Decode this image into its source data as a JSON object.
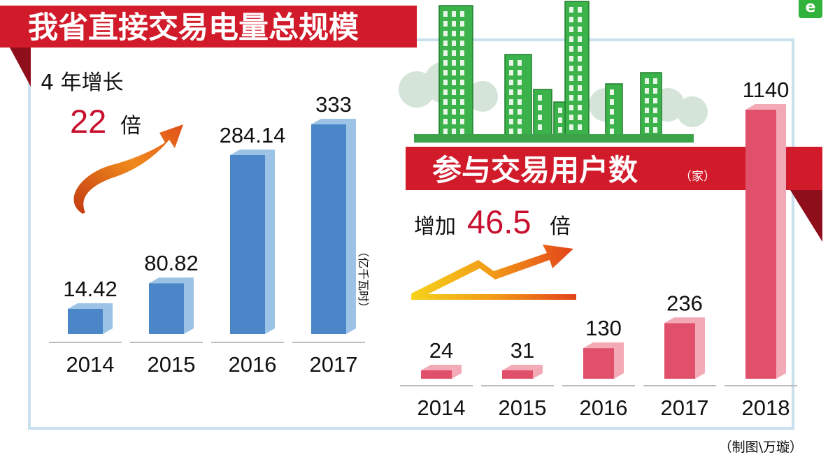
{
  "header": {
    "title": "我省直接交易电量总规模",
    "logo_text": "e"
  },
  "left_panel": {
    "growth_label": "4 年增长",
    "growth_value": "22",
    "growth_suffix": "倍",
    "unit_label": "（亿千瓦时）"
  },
  "right_panel": {
    "title": "参与交易用户数",
    "unit_label": "（家）",
    "growth_label": "增加",
    "growth_value": "46.5",
    "growth_suffix": "倍"
  },
  "footer": {
    "credit": "（制图\\万璇）"
  },
  "colors": {
    "banner_red": "#d11a2a",
    "blue_front": "#4a86c8",
    "blue_side": "#9cc3e6",
    "red_front": "#e0506a",
    "red_side": "#f3a9b6",
    "building_green": "#3bb34a",
    "frame_blue": "#c9e0ef"
  },
  "chart_data": [
    {
      "type": "bar",
      "title": "我省直接交易电量总规模",
      "categories": [
        "2014",
        "2015",
        "2016",
        "2017"
      ],
      "values": [
        14.42,
        80.82,
        284.14,
        333
      ],
      "value_labels": [
        "14.42",
        "80.82",
        "284.14",
        "333"
      ],
      "ylabel": "亿千瓦时",
      "ylim": [
        0,
        333
      ],
      "grid": false
    },
    {
      "type": "bar",
      "title": "参与交易用户数",
      "categories": [
        "2014",
        "2015",
        "2016",
        "2017",
        "2018"
      ],
      "values": [
        24,
        31,
        130,
        236,
        1140
      ],
      "value_labels": [
        "24",
        "31",
        "130",
        "236",
        "1140"
      ],
      "ylabel": "家",
      "ylim": [
        0,
        1140
      ],
      "grid": false
    }
  ]
}
